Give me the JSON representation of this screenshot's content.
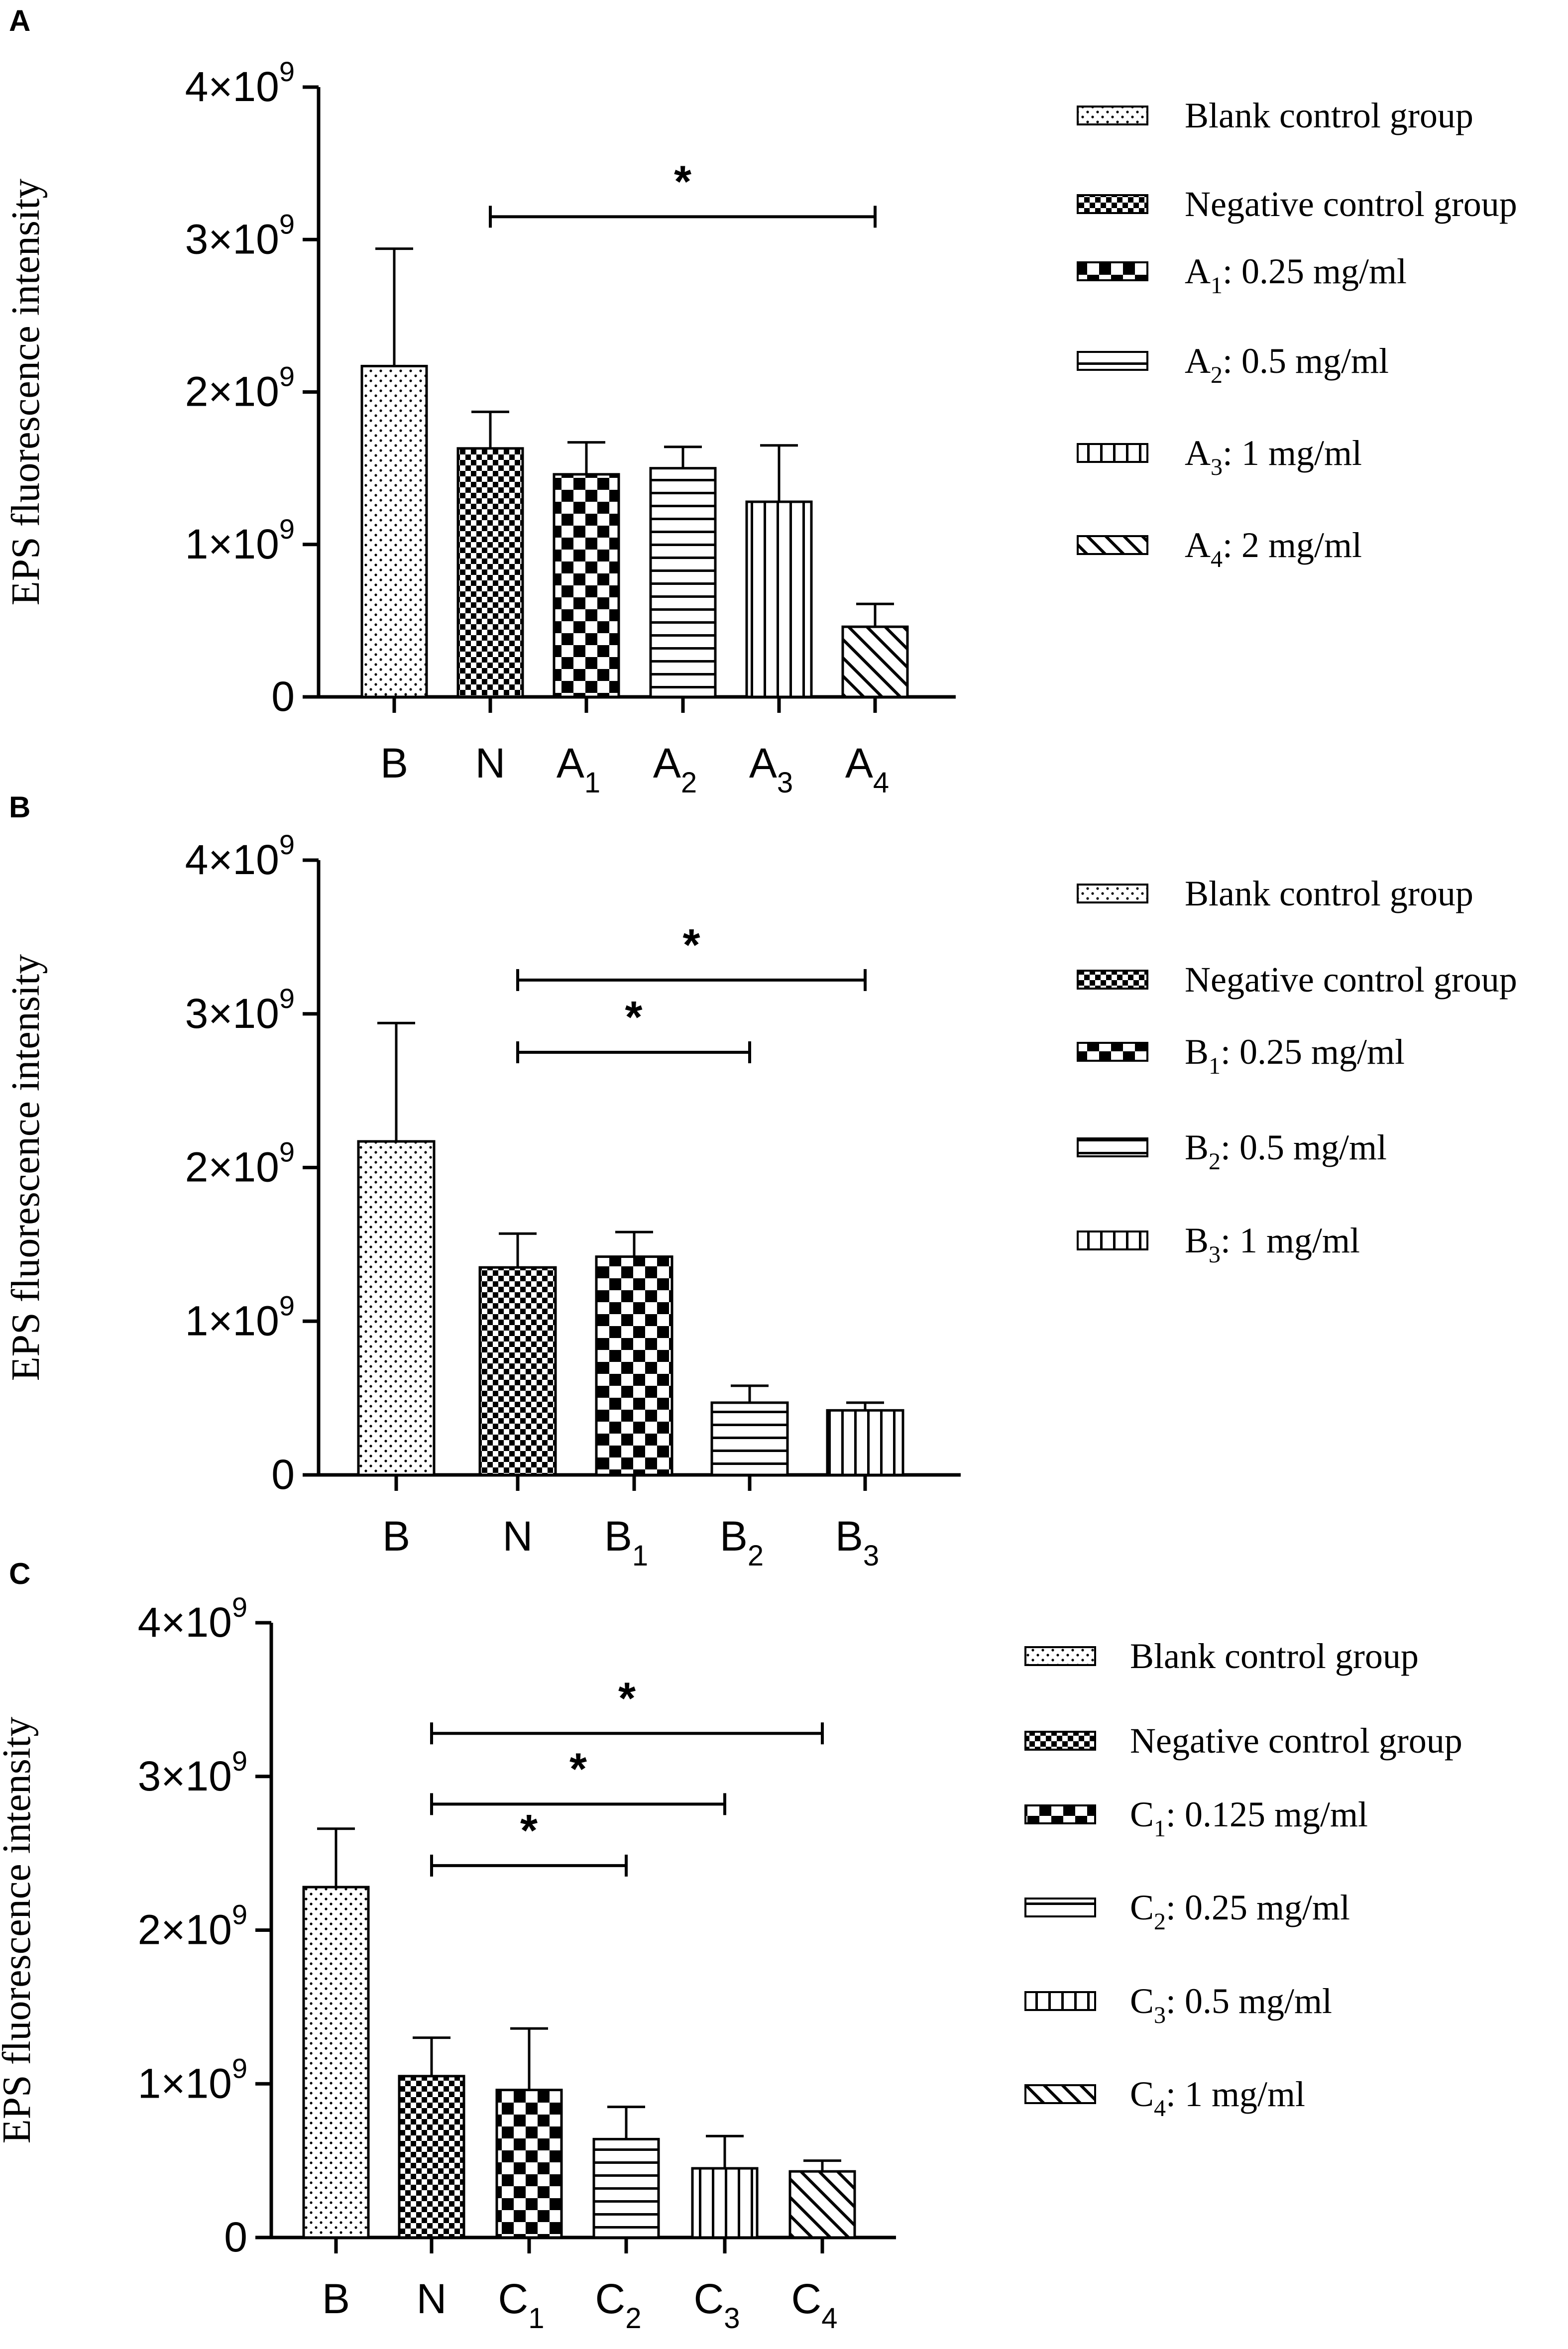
{
  "chart_data": [
    {
      "panel": "A",
      "type": "bar",
      "ylabel": "EPS fluorescence intensity",
      "ylim": [
        0,
        4000000000
      ],
      "yticks": [
        {
          "base": "0",
          "exp": ""
        },
        {
          "base": "1×10",
          "exp": "9"
        },
        {
          "base": "2×10",
          "exp": "9"
        },
        {
          "base": "3×10",
          "exp": "9"
        },
        {
          "base": "4×10",
          "exp": "9"
        }
      ],
      "categories": [
        {
          "main": "B",
          "sub": ""
        },
        {
          "main": "N",
          "sub": ""
        },
        {
          "main": "A",
          "sub": "1"
        },
        {
          "main": "A",
          "sub": "2"
        },
        {
          "main": "A",
          "sub": "3"
        },
        {
          "main": "A",
          "sub": "4"
        }
      ],
      "values": [
        2170000000,
        1630000000,
        1460000000,
        1500000000,
        1280000000,
        460000000
      ],
      "errors": [
        770000000,
        240000000,
        210000000,
        140000000,
        370000000,
        150000000
      ],
      "patterns": [
        "dots",
        "fine-check",
        "check",
        "hlines",
        "vlines",
        "diag"
      ],
      "legend": [
        {
          "main": "Blank control group",
          "sub": "",
          "rest": ""
        },
        {
          "main": "Negative control group",
          "sub": "",
          "rest": ""
        },
        {
          "main": "A",
          "sub": "1",
          "rest": ": 0.25 mg/ml"
        },
        {
          "main": "A",
          "sub": "2",
          "rest": ": 0.5 mg/ml"
        },
        {
          "main": "A",
          "sub": "3",
          "rest": ": 1 mg/ml"
        },
        {
          "main": "A",
          "sub": "4",
          "rest": ": 2 mg/ml"
        }
      ],
      "significance": [
        {
          "from": 1,
          "to": 5,
          "y": 3150000000,
          "label": "*"
        }
      ]
    },
    {
      "panel": "B",
      "type": "bar",
      "ylabel": "EPS fluorescence intensity",
      "ylim": [
        0,
        4000000000
      ],
      "yticks": [
        {
          "base": "0",
          "exp": ""
        },
        {
          "base": "1×10",
          "exp": "9"
        },
        {
          "base": "2×10",
          "exp": "9"
        },
        {
          "base": "3×10",
          "exp": "9"
        },
        {
          "base": "4×10",
          "exp": "9"
        }
      ],
      "categories": [
        {
          "main": "B",
          "sub": ""
        },
        {
          "main": "N",
          "sub": ""
        },
        {
          "main": "B",
          "sub": "1"
        },
        {
          "main": "B",
          "sub": "2"
        },
        {
          "main": "B",
          "sub": "3"
        }
      ],
      "values": [
        2170000000,
        1350000000,
        1420000000,
        470000000,
        420000000
      ],
      "errors": [
        770000000,
        220000000,
        160000000,
        110000000,
        50000000
      ],
      "patterns": [
        "dots",
        "fine-check",
        "check",
        "hlines",
        "vlines"
      ],
      "legend": [
        {
          "main": "Blank control group",
          "sub": "",
          "rest": ""
        },
        {
          "main": "Negative control group",
          "sub": "",
          "rest": ""
        },
        {
          "main": "B",
          "sub": "1",
          "rest": ":   0.25 mg/ml"
        },
        {
          "main": "B",
          "sub": "2",
          "rest": ":  0.5 mg/ml"
        },
        {
          "main": "B",
          "sub": "3",
          "rest": ":  1 mg/ml"
        }
      ],
      "significance": [
        {
          "from": 1,
          "to": 4,
          "y": 3220000000,
          "label": "*"
        },
        {
          "from": 1,
          "to": 3,
          "y": 2750000000,
          "label": "*"
        }
      ]
    },
    {
      "panel": "C",
      "type": "bar",
      "ylabel": "EPS fluorescence intensity",
      "ylim": [
        0,
        4000000000
      ],
      "yticks": [
        {
          "base": "0",
          "exp": ""
        },
        {
          "base": "1×10",
          "exp": "9"
        },
        {
          "base": "2×10",
          "exp": "9"
        },
        {
          "base": "3×10",
          "exp": "9"
        },
        {
          "base": "4×10",
          "exp": "9"
        }
      ],
      "categories": [
        {
          "main": "B",
          "sub": ""
        },
        {
          "main": "N",
          "sub": ""
        },
        {
          "main": "C",
          "sub": "1"
        },
        {
          "main": "C",
          "sub": "2"
        },
        {
          "main": "C",
          "sub": "3"
        },
        {
          "main": "C",
          "sub": "4"
        }
      ],
      "values": [
        2280000000,
        1050000000,
        960000000,
        640000000,
        450000000,
        430000000
      ],
      "errors": [
        380000000,
        250000000,
        400000000,
        210000000,
        210000000,
        70000000
      ],
      "patterns": [
        "dots",
        "fine-check",
        "check",
        "hlines",
        "vlines",
        "diag"
      ],
      "legend": [
        {
          "main": "Blank control group",
          "sub": "",
          "rest": ""
        },
        {
          "main": "Negative control group",
          "sub": "",
          "rest": ""
        },
        {
          "main": "C",
          "sub": "1",
          "rest": ":  0.125 mg/ml"
        },
        {
          "main": "C",
          "sub": "2",
          "rest": ":  0.25 mg/ml"
        },
        {
          "main": "C",
          "sub": "3",
          "rest": ":  0.5 mg/ml"
        },
        {
          "main": "C",
          "sub": "4",
          "rest": ":  1 mg/ml"
        }
      ],
      "significance": [
        {
          "from": 1,
          "to": 5,
          "y": 3280000000,
          "label": "*"
        },
        {
          "from": 1,
          "to": 4,
          "y": 2820000000,
          "label": "*"
        },
        {
          "from": 1,
          "to": 3,
          "y": 2420000000,
          "label": "*"
        }
      ]
    }
  ]
}
